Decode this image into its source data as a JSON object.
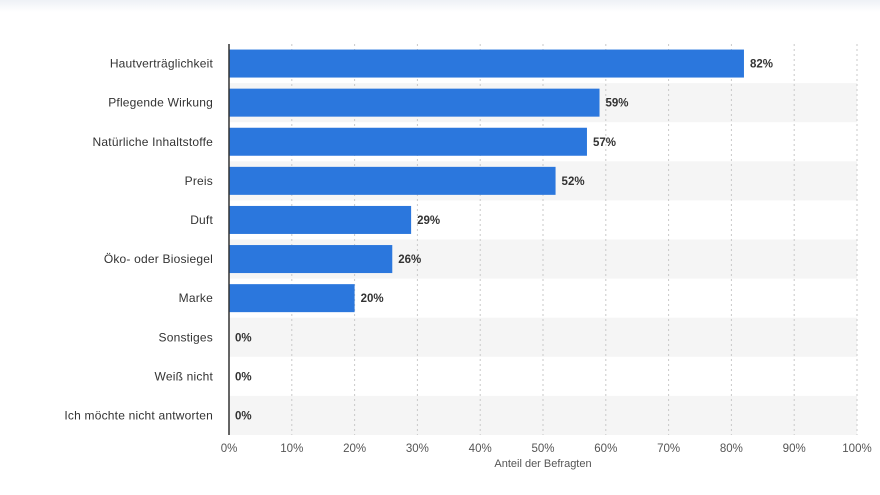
{
  "chart_data": {
    "type": "bar",
    "orientation": "horizontal",
    "categories": [
      "Hautverträglichkeit",
      "Pflegende Wirkung",
      "Natürliche Inhaltstoffe",
      "Preis",
      "Duft",
      "Öko- oder Biosiegel",
      "Marke",
      "Sonstiges",
      "Weiß nicht",
      "Ich möchte nicht antworten"
    ],
    "values": [
      82,
      59,
      57,
      52,
      29,
      26,
      20,
      0,
      0,
      0
    ],
    "value_labels": [
      "82%",
      "59%",
      "57%",
      "52%",
      "29%",
      "26%",
      "20%",
      "0%",
      "0%",
      "0%"
    ],
    "xlabel": "Anteil der Befragten",
    "ylabel": "",
    "xlim": [
      0,
      100
    ],
    "x_ticks": [
      "0%",
      "10%",
      "20%",
      "30%",
      "40%",
      "50%",
      "60%",
      "70%",
      "80%",
      "90%",
      "100%"
    ],
    "grid": true,
    "bar_color": "#2b77dd",
    "stripe_color": "#f5f5f5"
  }
}
